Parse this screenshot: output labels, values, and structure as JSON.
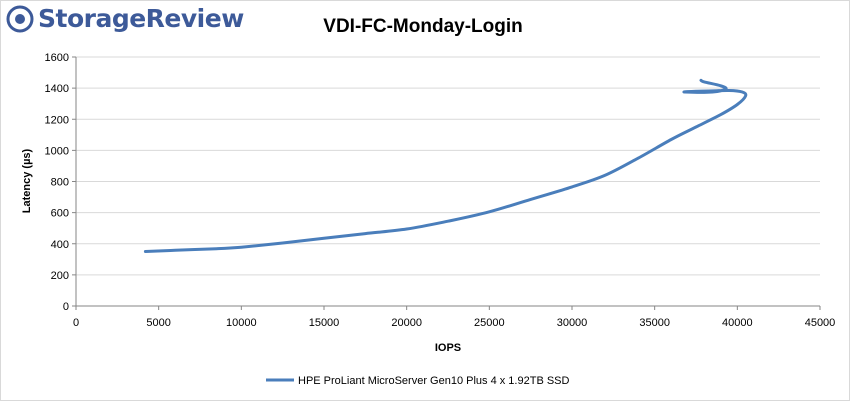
{
  "brand": {
    "name": "StorageReview",
    "icon": "storagereview-logo-icon",
    "color": "#3d5a99"
  },
  "chart_data": {
    "type": "line",
    "title": "VDI-FC-Monday-Login",
    "xlabel": "IOPS",
    "ylabel": "Latency (µs)",
    "xlim": [
      0,
      45000
    ],
    "ylim": [
      0,
      1600
    ],
    "x_ticks": [
      "0",
      "5000",
      "10000",
      "15000",
      "20000",
      "25000",
      "30000",
      "35000",
      "40000",
      "45000"
    ],
    "y_ticks": [
      "0",
      "200",
      "400",
      "600",
      "800",
      "1000",
      "1200",
      "1400",
      "1600"
    ],
    "grid": "horizontal",
    "legend_position": "bottom",
    "series": [
      {
        "name": "HPE ProLiant MicroServer Gen10 Plus 4 x 1.92TB SSD",
        "color": "#4a7ebb",
        "x": [
          4200,
          6000,
          8500,
          10000,
          12500,
          15000,
          17500,
          20000,
          22500,
          25000,
          27500,
          30000,
          32000,
          34000,
          36000,
          37500,
          39000,
          40000,
          40500,
          40300,
          39500,
          38500,
          37500,
          36800,
          38500,
          39300,
          39000,
          38000,
          37800
        ],
        "y": [
          350,
          358,
          368,
          378,
          405,
          435,
          465,
          495,
          545,
          605,
          685,
          765,
          840,
          950,
          1070,
          1150,
          1230,
          1295,
          1350,
          1375,
          1385,
          1382,
          1380,
          1375,
          1375,
          1395,
          1415,
          1440,
          1450
        ]
      }
    ]
  }
}
